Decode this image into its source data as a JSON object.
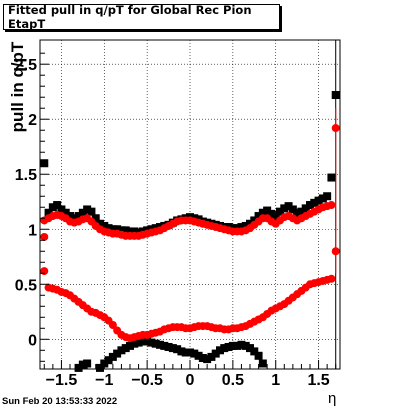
{
  "title": "Fitted pull in q/pT for Global Rec Pion EtapT",
  "timestamp": "Sun Feb 20 13:53:33 2022",
  "chart_data": {
    "type": "scatter",
    "xlabel": "η",
    "ylabel": "pull in q/pT",
    "xlim": [
      -1.75,
      1.75
    ],
    "ylim": [
      -0.27,
      2.72
    ],
    "xticks": [
      -1.5,
      -1,
      -0.5,
      0,
      0.5,
      1,
      1.5
    ],
    "xtick_labels": [
      "−1.5",
      "−1",
      "−0.5",
      "0",
      "0.5",
      "1",
      "1.5"
    ],
    "yticks": [
      0,
      0.5,
      1,
      1.5,
      2,
      2.5
    ],
    "ytick_labels": [
      "0",
      "0.5",
      "1",
      "1.5",
      "2",
      "2.5"
    ],
    "grid": true,
    "series": [
      {
        "color": "#000000",
        "marker": "square",
        "x": [
          -1.7,
          -1.65,
          -1.6,
          -1.55,
          -1.5,
          -1.45,
          -1.4,
          -1.35,
          -1.3,
          -1.25,
          -1.2,
          -1.15,
          -1.1,
          -1.05,
          -1.0,
          -0.95,
          -0.9,
          -0.85,
          -0.8,
          -0.75,
          -0.7,
          -0.65,
          -0.6,
          -0.55,
          -0.5,
          -0.45,
          -0.4,
          -0.35,
          -0.3,
          -0.25,
          -0.2,
          -0.15,
          -0.1,
          -0.05,
          0.0,
          0.05,
          0.1,
          0.15,
          0.2,
          0.25,
          0.3,
          0.35,
          0.4,
          0.45,
          0.5,
          0.55,
          0.6,
          0.65,
          0.7,
          0.75,
          0.8,
          0.85,
          0.9,
          0.95,
          1.0,
          1.05,
          1.1,
          1.15,
          1.2,
          1.25,
          1.3,
          1.35,
          1.4,
          1.45,
          1.5,
          1.55,
          1.6,
          1.65,
          1.7
        ],
        "y": [
          1.6,
          1.15,
          1.2,
          1.22,
          1.18,
          1.15,
          1.12,
          1.1,
          1.12,
          1.15,
          1.18,
          1.16,
          1.1,
          1.05,
          1.03,
          1.01,
          1.0,
          1.0,
          0.99,
          0.99,
          0.98,
          0.98,
          0.97,
          0.98,
          0.99,
          1.0,
          1.01,
          1.02,
          1.03,
          1.04,
          1.06,
          1.08,
          1.09,
          1.1,
          1.11,
          1.1,
          1.09,
          1.07,
          1.06,
          1.05,
          1.04,
          1.03,
          1.02,
          1.02,
          1.01,
          1.01,
          1.02,
          1.03,
          1.05,
          1.08,
          1.12,
          1.15,
          1.17,
          1.14,
          1.12,
          1.16,
          1.19,
          1.21,
          1.18,
          1.15,
          1.16,
          1.19,
          1.22,
          1.24,
          1.26,
          1.28,
          1.3,
          1.47,
          2.22
        ]
      },
      {
        "color": "#000000",
        "marker": "square",
        "x": [
          -1.3,
          -1.25,
          -1.2,
          -1.05,
          -1.0,
          -0.95,
          -0.9,
          -0.85,
          -0.8,
          -0.75,
          -0.7,
          -0.65,
          -0.6,
          -0.55,
          -0.5,
          -0.45,
          -0.4,
          -0.35,
          -0.3,
          -0.25,
          -0.2,
          -0.15,
          -0.1,
          -0.05,
          0.0,
          0.05,
          0.1,
          0.15,
          0.2,
          0.25,
          0.3,
          0.35,
          0.4,
          0.45,
          0.5,
          0.55,
          0.6,
          0.65,
          0.7,
          0.75,
          0.8,
          0.85
        ],
        "y": [
          -0.26,
          -0.23,
          -0.22,
          -0.26,
          -0.22,
          -0.19,
          -0.16,
          -0.13,
          -0.1,
          -0.08,
          -0.06,
          -0.04,
          -0.03,
          -0.02,
          -0.02,
          -0.03,
          -0.04,
          -0.05,
          -0.06,
          -0.07,
          -0.08,
          -0.09,
          -0.11,
          -0.12,
          -0.12,
          -0.13,
          -0.15,
          -0.17,
          -0.18,
          -0.16,
          -0.13,
          -0.1,
          -0.08,
          -0.07,
          -0.06,
          -0.06,
          -0.05,
          -0.06,
          -0.08,
          -0.11,
          -0.15,
          -0.22
        ]
      },
      {
        "color": "#ff0000",
        "marker": "circle",
        "x": [
          -1.7,
          -1.7,
          -1.65,
          -1.6,
          -1.55,
          -1.5,
          -1.45,
          -1.4,
          -1.35,
          -1.3,
          -1.25,
          -1.2,
          -1.15,
          -1.1,
          -1.05,
          -1.0,
          -0.95,
          -0.9,
          -0.85,
          -0.8,
          -0.75,
          -0.7,
          -0.65,
          -0.6,
          -0.55,
          -0.5,
          -0.45,
          -0.4,
          -0.35,
          -0.3,
          -0.25,
          -0.2,
          -0.15,
          -0.1,
          -0.05,
          0.0,
          0.05,
          0.1,
          0.15,
          0.2,
          0.25,
          0.3,
          0.35,
          0.4,
          0.45,
          0.5,
          0.55,
          0.6,
          0.65,
          0.7,
          0.75,
          0.8,
          0.85,
          0.9,
          0.95,
          1.0,
          1.05,
          1.1,
          1.15,
          1.2,
          1.25,
          1.3,
          1.35,
          1.4,
          1.45,
          1.5,
          1.55,
          1.6,
          1.65,
          1.7,
          1.7
        ],
        "y": [
          0.93,
          1.08,
          1.1,
          1.12,
          1.13,
          1.12,
          1.1,
          1.07,
          1.06,
          1.07,
          1.09,
          1.1,
          1.07,
          1.03,
          1.0,
          0.98,
          0.97,
          0.96,
          0.96,
          0.95,
          0.94,
          0.94,
          0.94,
          0.94,
          0.95,
          0.96,
          0.97,
          0.98,
          0.99,
          1.01,
          1.03,
          1.05,
          1.07,
          1.08,
          1.08,
          1.08,
          1.07,
          1.06,
          1.05,
          1.04,
          1.03,
          1.02,
          1.01,
          1.0,
          0.99,
          0.98,
          0.98,
          0.98,
          0.99,
          1.01,
          1.04,
          1.07,
          1.1,
          1.1,
          1.07,
          1.05,
          1.08,
          1.11,
          1.12,
          1.1,
          1.08,
          1.1,
          1.12,
          1.14,
          1.16,
          1.18,
          1.2,
          1.21,
          1.22,
          1.92,
          0.8
        ]
      },
      {
        "color": "#ff0000",
        "marker": "circle",
        "x": [
          -1.7,
          -1.65,
          -1.6,
          -1.55,
          -1.5,
          -1.45,
          -1.4,
          -1.35,
          -1.3,
          -1.25,
          -1.2,
          -1.15,
          -1.1,
          -1.05,
          -1.0,
          -0.95,
          -0.9,
          -0.85,
          -0.8,
          -0.75,
          -0.7,
          -0.65,
          -0.6,
          -0.55,
          -0.5,
          -0.45,
          -0.4,
          -0.35,
          -0.3,
          -0.25,
          -0.2,
          -0.15,
          -0.1,
          -0.05,
          0.0,
          0.05,
          0.1,
          0.15,
          0.2,
          0.25,
          0.3,
          0.35,
          0.4,
          0.45,
          0.5,
          0.55,
          0.6,
          0.65,
          0.7,
          0.75,
          0.8,
          0.85,
          0.9,
          0.95,
          1.0,
          1.05,
          1.1,
          1.15,
          1.2,
          1.25,
          1.3,
          1.35,
          1.4,
          1.45,
          1.5,
          1.55,
          1.6,
          1.65
        ],
        "y": [
          0.62,
          0.47,
          0.46,
          0.45,
          0.43,
          0.42,
          0.4,
          0.37,
          0.34,
          0.31,
          0.28,
          0.25,
          0.24,
          0.22,
          0.2,
          0.17,
          0.13,
          0.08,
          0.04,
          0.02,
          0.01,
          0.02,
          0.03,
          0.04,
          0.04,
          0.05,
          0.06,
          0.07,
          0.09,
          0.1,
          0.11,
          0.11,
          0.11,
          0.1,
          0.1,
          0.11,
          0.12,
          0.12,
          0.12,
          0.11,
          0.1,
          0.1,
          0.09,
          0.09,
          0.1,
          0.1,
          0.11,
          0.12,
          0.14,
          0.16,
          0.18,
          0.2,
          0.23,
          0.26,
          0.28,
          0.3,
          0.32,
          0.35,
          0.38,
          0.41,
          0.44,
          0.47,
          0.5,
          0.51,
          0.52,
          0.53,
          0.54,
          0.55
        ]
      }
    ],
    "error_bars": [
      {
        "x": 1.7,
        "ymin": -0.27,
        "ymax": 2.72,
        "color": "#000000"
      },
      {
        "x": 1.7,
        "ymin": 0.6,
        "ymax": 2.1,
        "color": "#ff0000"
      }
    ]
  }
}
